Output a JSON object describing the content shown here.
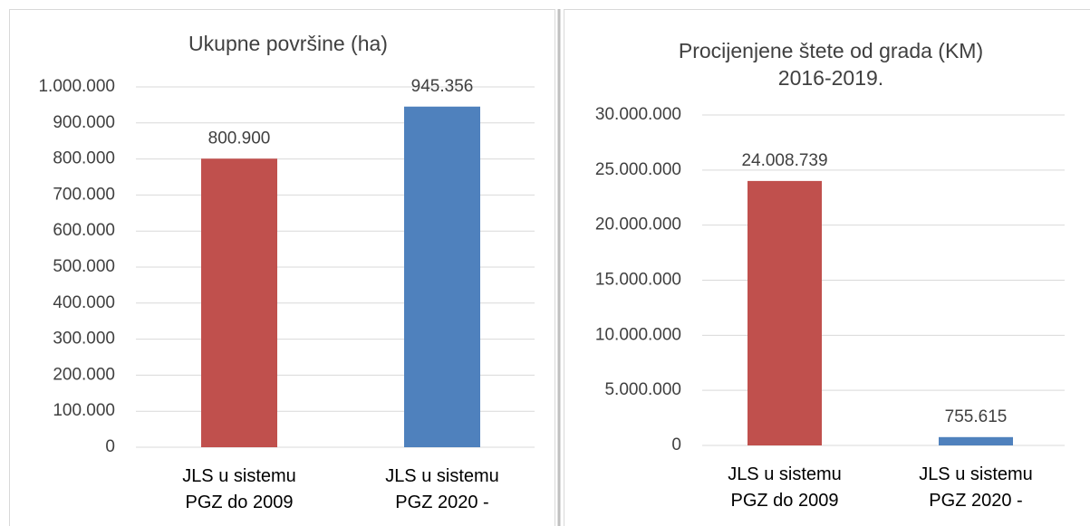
{
  "chart_data": [
    {
      "type": "bar",
      "title": "Ukupne površine (ha)",
      "categories": [
        "JLS u sistemu\nPGZ do 2009",
        "JLS u sistemu\nPGZ 2020 -"
      ],
      "values": [
        800900,
        945356
      ],
      "value_labels": [
        "800.900",
        "945.356"
      ],
      "colors": [
        "#c0504d",
        "#4f81bd"
      ],
      "ylim": [
        0,
        1000000
      ],
      "yticks": [
        0,
        {
          "value": 100000,
          "label": "100.000"
        },
        {
          "value": 200000,
          "label": "200.000"
        },
        {
          "value": 300000,
          "label": "300.000"
        },
        {
          "value": 400000,
          "label": "400.000"
        },
        {
          "value": 500000,
          "label": "500.000"
        },
        {
          "value": 600000,
          "label": "600.000"
        },
        {
          "value": 700000,
          "label": "700.000"
        },
        {
          "value": 800000,
          "label": "800.000"
        },
        {
          "value": 900000,
          "label": "900.000"
        },
        {
          "value": 1000000,
          "label": "1.000.000"
        }
      ],
      "grid": true
    },
    {
      "type": "bar",
      "title": "Procijenjene štete od grada (KM)\n2016-2019.",
      "categories": [
        "JLS u sistemu\nPGZ do 2009",
        "JLS u sistemu\nPGZ 2020 -"
      ],
      "values": [
        24008739,
        755615
      ],
      "value_labels": [
        "24.008.739",
        "755.615"
      ],
      "colors": [
        "#c0504d",
        "#4f81bd"
      ],
      "ylim": [
        0,
        30000000
      ],
      "yticks": [
        0,
        {
          "value": 5000000,
          "label": "5.000.000"
        },
        {
          "value": 10000000,
          "label": "10.000.000"
        },
        {
          "value": 15000000,
          "label": "15.000.000"
        },
        {
          "value": 20000000,
          "label": "20.000.000"
        },
        {
          "value": 25000000,
          "label": "25.000.000"
        },
        {
          "value": 30000000,
          "label": "30.000.000"
        }
      ],
      "grid": true
    }
  ]
}
